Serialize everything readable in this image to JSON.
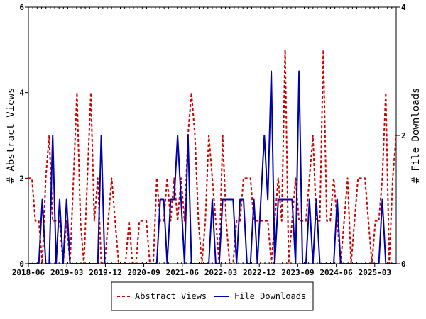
{
  "chart_data": {
    "type": "line",
    "title": "",
    "x_tick_labels": [
      "2018-06",
      "2019-03",
      "2019-12",
      "2020-09",
      "2021-06",
      "2022-03",
      "2022-12",
      "2023-09",
      "2024-06",
      "2025-03"
    ],
    "left_axis": {
      "label": "# Abstract Views",
      "ylim": [
        0,
        6
      ],
      "ticks": [
        "0",
        "2",
        "4",
        "6"
      ]
    },
    "right_axis": {
      "label": "# File Downloads",
      "ylim": [
        0,
        4
      ],
      "ticks": [
        "0",
        "2",
        "4"
      ]
    },
    "grid": false,
    "legend_placement": "bottom-center",
    "series": [
      {
        "name": "Abstract Views",
        "axis": "left",
        "color": "#cc0000",
        "style": "dashed",
        "values": [
          2,
          2,
          1,
          1,
          0,
          2,
          3,
          1,
          1,
          1,
          0,
          1,
          0,
          2,
          4,
          1,
          0,
          2,
          4,
          1,
          2,
          0,
          0,
          1,
          2,
          1,
          0,
          0,
          0,
          1,
          0,
          0,
          1,
          1,
          1,
          0,
          0,
          2,
          1,
          1,
          2,
          1,
          2,
          1,
          2,
          1,
          3,
          4,
          3,
          1,
          0,
          1,
          3,
          2,
          1,
          0,
          3,
          1,
          0,
          0,
          1,
          1,
          2,
          2,
          2,
          1,
          1,
          1,
          1,
          1,
          0,
          1,
          2,
          1,
          5,
          0,
          1,
          2,
          1,
          1,
          1,
          2,
          3,
          1,
          1,
          5,
          1,
          1,
          2,
          1,
          0,
          1,
          2,
          0,
          1,
          2,
          2,
          2,
          1,
          0,
          1,
          1,
          2,
          4,
          0,
          2,
          3
        ]
      },
      {
        "name": "File Downloads",
        "axis": "right",
        "color": "#0000aa",
        "style": "solid",
        "values": [
          0,
          0,
          0,
          0,
          1,
          0,
          0,
          2,
          0,
          1,
          0,
          1,
          0,
          0,
          0,
          0,
          0,
          0,
          0,
          0,
          0,
          2,
          0,
          0,
          0,
          0,
          0,
          0,
          0,
          0,
          0,
          0,
          0,
          0,
          0,
          0,
          0,
          0,
          1,
          1,
          0,
          1,
          1,
          2,
          1,
          0,
          2,
          0,
          0,
          0,
          0,
          0,
          0,
          1,
          0,
          0,
          1,
          1,
          1,
          1,
          0,
          1,
          1,
          0,
          0,
          1,
          0,
          1,
          2,
          1,
          3,
          0,
          1,
          1,
          1,
          1,
          1,
          0,
          3,
          0,
          0,
          1,
          0,
          1,
          0,
          0,
          0,
          0,
          0,
          1,
          0,
          0,
          0,
          0,
          0,
          0,
          0,
          0,
          0,
          0,
          0,
          0,
          1,
          0,
          0,
          0,
          0
        ]
      }
    ]
  }
}
